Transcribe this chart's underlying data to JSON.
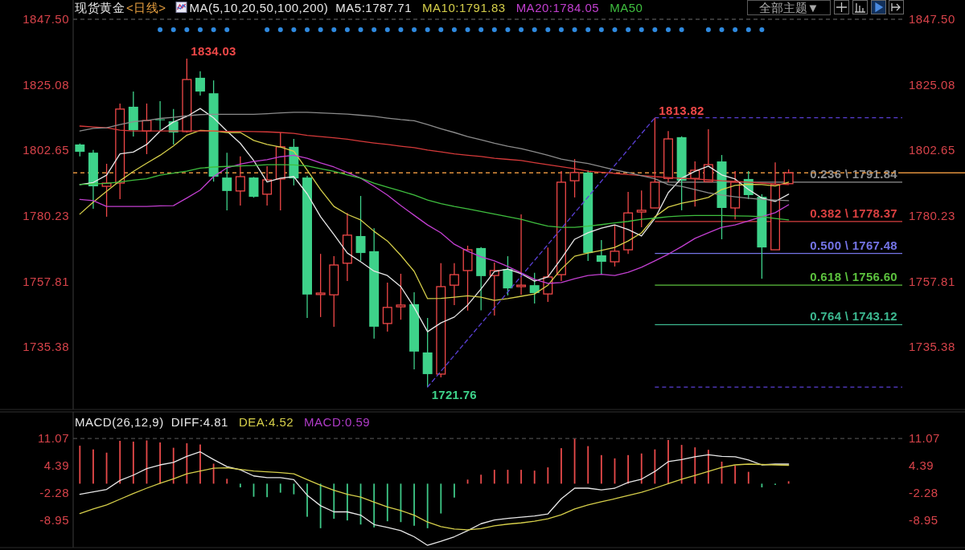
{
  "chart_data": [
    {
      "type": "candlestick",
      "title": "现货黄金",
      "subtitle": "<日线>",
      "legend": "top",
      "legend_title": "MA(5,10,20,50,100,200)",
      "categories": [
        null,
        null,
        null,
        null,
        null,
        null,
        null,
        null,
        null,
        null,
        null,
        null,
        null,
        null,
        null,
        null,
        null,
        null,
        null,
        null,
        null,
        null,
        null,
        null,
        null,
        null,
        null,
        null,
        null,
        null,
        null,
        null,
        null,
        null,
        null,
        null,
        null,
        null,
        null,
        null,
        null,
        null,
        null,
        null,
        null,
        null,
        null,
        null,
        null,
        null,
        null,
        null,
        null,
        null
      ],
      "ohlc": [
        [
          1804.7,
          1805.0,
          1800.6,
          1802.2
        ],
        [
          1801.9,
          1802.8,
          1782.7,
          1790.4
        ],
        [
          1790.4,
          1798.1,
          1780.0,
          1791.5
        ],
        [
          1791.5,
          1818.7,
          1786.0,
          1816.8
        ],
        [
          1817.6,
          1822.8,
          1807.4,
          1809.6
        ],
        [
          1809.3,
          1818.7,
          1801.4,
          1812.9
        ],
        [
          1813.3,
          1819.5,
          1809.3,
          1813.0
        ],
        [
          1812.6,
          1816.8,
          1804.7,
          1808.8
        ],
        [
          1809.1,
          1834.03,
          1808.8,
          1826.9
        ],
        [
          1827.5,
          1829.7,
          1821.4,
          1822.8
        ],
        [
          1822.2,
          1826.6,
          1792.0,
          1793.7
        ],
        [
          1793.4,
          1801.9,
          1782.2,
          1788.8
        ],
        [
          1788.8,
          1800.6,
          1783.8,
          1793.7
        ],
        [
          1793.4,
          1793.6,
          1786.5,
          1786.8
        ],
        [
          1787.7,
          1797.3,
          1783.8,
          1792.6
        ],
        [
          1792.9,
          1808.8,
          1782.2,
          1803.9
        ],
        [
          1803.9,
          1806.6,
          1790.7,
          1793.1
        ],
        [
          1793.4,
          1794.0,
          1745.4,
          1753.4
        ],
        [
          1753.4,
          1767.3,
          1745.7,
          1753.9
        ],
        [
          1753.3,
          1766.5,
          1742.4,
          1763.5
        ],
        [
          1764.1,
          1781.3,
          1758.0,
          1773.7
        ],
        [
          1773.4,
          1787.1,
          1764.9,
          1767.6
        ],
        [
          1768.2,
          1776.1,
          1738.3,
          1742.4
        ],
        [
          1743.5,
          1757.5,
          1740.7,
          1749.0
        ],
        [
          1749.2,
          1760.5,
          1744.8,
          1749.8
        ],
        [
          1750.1,
          1754.2,
          1727.8,
          1733.9
        ],
        [
          1733.6,
          1745.4,
          1721.76,
          1726.2
        ],
        [
          1726.2,
          1764.1,
          1725.1,
          1756.1
        ],
        [
          1756.6,
          1764.1,
          1749.8,
          1760.2
        ],
        [
          1761.6,
          1770.1,
          1747.9,
          1768.7
        ],
        [
          1769.3,
          1769.6,
          1748.0,
          1759.7
        ],
        [
          1759.9,
          1764.3,
          1746.2,
          1761.6
        ],
        [
          1762.1,
          1766.5,
          1753.1,
          1755.5
        ],
        [
          1756.1,
          1780.8,
          1753.3,
          1756.6
        ],
        [
          1756.6,
          1760.8,
          1750.3,
          1753.9
        ],
        [
          1753.6,
          1769.5,
          1750.9,
          1759.4
        ],
        [
          1760.2,
          1795.6,
          1758.0,
          1791.8
        ],
        [
          1792.3,
          1799.7,
          1786.6,
          1795.1
        ],
        [
          1795.1,
          1795.9,
          1764.9,
          1767.6
        ],
        [
          1766.8,
          1772.0,
          1760.2,
          1764.6
        ],
        [
          1764.6,
          1777.0,
          1763.0,
          1768.2
        ],
        [
          1768.7,
          1788.5,
          1767.3,
          1781.3
        ],
        [
          1781.6,
          1789.0,
          1776.4,
          1782.2
        ],
        [
          1783.0,
          1813.82,
          1783.0,
          1791.8
        ],
        [
          1793.1,
          1809.3,
          1791.8,
          1806.6
        ],
        [
          1807.2,
          1807.5,
          1782.2,
          1792.3
        ],
        [
          1793.1,
          1798.9,
          1783.5,
          1795.9
        ],
        [
          1792.0,
          1809.9,
          1791.8,
          1797.8
        ],
        [
          1798.9,
          1801.1,
          1772.3,
          1783.0
        ],
        [
          1783.0,
          1795.6,
          1779.1,
          1791.8
        ],
        [
          1792.9,
          1795.6,
          1786.0,
          1787.4
        ],
        [
          1786.8,
          1787.7,
          1758.8,
          1769.5
        ],
        [
          1768.7,
          1798.6,
          1768.6,
          1791.0
        ],
        [
          1791.3,
          1796.2,
          1791.2,
          1795.0
        ]
      ],
      "value_labels": [
        null,
        null,
        null,
        null,
        null,
        null,
        null,
        null,
        "1834.03",
        null,
        null,
        null,
        null,
        null,
        null,
        null,
        null,
        null,
        null,
        null,
        null,
        null,
        null,
        null,
        null,
        null,
        "1721.76",
        null,
        null,
        null,
        null,
        null,
        null,
        null,
        null,
        null,
        null,
        null,
        null,
        null,
        null,
        null,
        null,
        "1813.82",
        null,
        null,
        null,
        null,
        null,
        null,
        null,
        null,
        null,
        null
      ],
      "colors": [
        "#3ed28a",
        "#3ed28a",
        "#f04848",
        "#f04848",
        "#3ed28a",
        "#f04848",
        "#3ed28a",
        "#3ed28a",
        "#f04848",
        "#3ed28a",
        "#3ed28a",
        "#3ed28a",
        "#f04848",
        "#3ed28a",
        "#f04848",
        "#f04848",
        "#3ed28a",
        "#3ed28a",
        "#f04848",
        "#f04848",
        "#f04848",
        "#3ed28a",
        "#3ed28a",
        "#f04848",
        "#f04848",
        "#3ed28a",
        "#3ed28a",
        "#f04848",
        "#f04848",
        "#f04848",
        "#3ed28a",
        "#f04848",
        "#3ed28a",
        "#f04848",
        "#3ed28a",
        "#f04848",
        "#f04848",
        "#f04848",
        "#3ed28a",
        "#3ed28a",
        "#f04848",
        "#f04848",
        "#f04848",
        "#f04848",
        "#f04848",
        "#3ed28a",
        "#f04848",
        "#f04848",
        "#3ed28a",
        "#f04848",
        "#3ed28a",
        "#3ed28a",
        "#f04848",
        "#f04848"
      ],
      "series": [
        {
          "name": "MA5:1787.71",
          "type": "line",
          "color": "#e8e8e8",
          "values": [
            1791.0,
            1791.7,
            1794.2,
            1801.5,
            1802.1,
            1804.7,
            1809.3,
            1812.4,
            1814.3,
            1817.0,
            1813.8,
            1809.3,
            1805.1,
            1799.2,
            1791.9,
            1793.2,
            1793.7,
            1787.8,
            1780.0,
            1773.9,
            1767.6,
            1764.6,
            1761.4,
            1759.9,
            1756.1,
            1749.0,
            1740.7,
            1743.7,
            1745.7,
            1749.8,
            1755.3,
            1761.3,
            1762.1,
            1760.5,
            1758.0,
            1759.4,
            1765.7,
            1772.3,
            1774.5,
            1776.1,
            1777.2,
            1775.6,
            1773.4,
            1779.4,
            1788.2,
            1793.2,
            1795.5,
            1797.3,
            1794.3,
            1792.9,
            1789.3,
            1786.4,
            1785.2,
            1787.7
          ]
        },
        {
          "name": "MA10:1791.83",
          "type": "line",
          "color": "#d6cf4a",
          "values": [
            1780.9,
            1785.0,
            1788.7,
            1792.3,
            1795.5,
            1798.3,
            1801.0,
            1804.2,
            1807.9,
            1809.5,
            1809.3,
            1808.8,
            1808.8,
            1806.1,
            1804.7,
            1803.8,
            1802.4,
            1795.9,
            1789.3,
            1783.5,
            1780.8,
            1778.9,
            1775.0,
            1771.7,
            1766.8,
            1761.3,
            1752.0,
            1752.1,
            1752.5,
            1753.0,
            1752.5,
            1751.4,
            1752.0,
            1752.8,
            1753.6,
            1756.6,
            1762.1,
            1766.5,
            1767.6,
            1768.5,
            1769.5,
            1771.7,
            1774.5,
            1780.0,
            1783.3,
            1784.6,
            1785.5,
            1786.6,
            1789.3,
            1790.7,
            1791.1,
            1791.0,
            1790.5,
            1791.8
          ]
        },
        {
          "name": "MA20:1784.05",
          "type": "line",
          "color": "#c23fd0",
          "values": [
            1785.9,
            1785.5,
            1783.5,
            1783.5,
            1783.5,
            1783.5,
            1783.7,
            1783.8,
            1786.4,
            1789.1,
            1793.7,
            1796.7,
            1798.0,
            1798.9,
            1799.5,
            1800.5,
            1801.0,
            1800.0,
            1798.4,
            1797.0,
            1795.1,
            1793.2,
            1790.4,
            1787.4,
            1783.8,
            1780.5,
            1777.2,
            1774.5,
            1770.6,
            1768.2,
            1766.3,
            1764.9,
            1763.0,
            1760.8,
            1758.6,
            1757.2,
            1757.5,
            1758.8,
            1759.9,
            1760.3,
            1759.9,
            1761.0,
            1762.7,
            1764.9,
            1767.2,
            1769.8,
            1772.6,
            1774.5,
            1776.4,
            1777.2,
            1778.6,
            1780.0,
            1781.4,
            1784.1
          ]
        },
        {
          "name": "MA50",
          "type": "line",
          "color": "#3fbf3f",
          "values": [
            1791.0,
            1791.2,
            1791.4,
            1791.9,
            1792.5,
            1793.0,
            1794.2,
            1794.9,
            1795.6,
            1796.6,
            1797.0,
            1797.2,
            1797.4,
            1797.5,
            1797.8,
            1797.8,
            1797.7,
            1797.4,
            1796.4,
            1795.5,
            1794.3,
            1793.2,
            1791.5,
            1790.1,
            1788.8,
            1787.4,
            1785.7,
            1784.5,
            1783.5,
            1782.7,
            1781.8,
            1780.9,
            1780.0,
            1779.1,
            1777.9,
            1776.8,
            1776.4,
            1776.4,
            1776.8,
            1777.3,
            1777.9,
            1778.4,
            1779.1,
            1779.5,
            1780.0,
            1780.3,
            1780.4,
            1780.4,
            1780.4,
            1780.3,
            1780.2,
            1780.0,
            1779.4,
            1778.9
          ]
        },
        {
          "type": "line",
          "color": "#d63a3a",
          "values": [
            1811.0,
            1810.7,
            1810.4,
            1809.6,
            1809.3,
            1809.3,
            1809.3,
            1809.3,
            1809.3,
            1809.3,
            1809.3,
            1809.2,
            1809.2,
            1809.1,
            1809.0,
            1808.8,
            1808.5,
            1807.8,
            1807.4,
            1807.0,
            1806.5,
            1805.8,
            1805.2,
            1804.7,
            1804.1,
            1803.6,
            1802.8,
            1802.2,
            1801.5,
            1801.0,
            1800.6,
            1800.0,
            1799.6,
            1799.2,
            1798.5,
            1797.8,
            1797.1,
            1796.4,
            1795.6,
            1795.2,
            1794.8,
            1794.4,
            1794.1,
            1793.7,
            1793.4,
            1793.1,
            1792.9,
            1792.6,
            1792.3,
            1792.1,
            1791.8,
            1791.5,
            1791.2,
            1791.0
          ]
        },
        {
          "type": "line",
          "color": "#8c8c8c",
          "values": [
            1809.3,
            1810.2,
            1810.4,
            1811.5,
            1812.5,
            1812.9,
            1813.6,
            1814.0,
            1814.5,
            1814.9,
            1815.0,
            1815.0,
            1815.0,
            1815.0,
            1815.2,
            1815.5,
            1815.7,
            1815.7,
            1815.5,
            1815.3,
            1815.1,
            1814.7,
            1814.3,
            1813.7,
            1813.2,
            1812.8,
            1811.5,
            1810.1,
            1808.8,
            1807.4,
            1806.3,
            1805.1,
            1804.1,
            1803.3,
            1802.2,
            1801.0,
            1799.7,
            1798.9,
            1798.2,
            1797.1,
            1796.0,
            1795.1,
            1794.0,
            1793.0,
            1791.0,
            1790.4,
            1789.3,
            1788.2,
            1787.4,
            1786.8,
            1786.3,
            1785.9,
            1785.7,
            1785.5
          ]
        },
        {
          "type": "line",
          "color": "#5a3fd6",
          "line_style": "dashed",
          "values": [
            null,
            null,
            null,
            null,
            null,
            null,
            null,
            null,
            null,
            null,
            null,
            null,
            null,
            null,
            null,
            null,
            null,
            null,
            null,
            null,
            null,
            null,
            null,
            null,
            null,
            null,
            1721.76,
            null,
            null,
            null,
            null,
            null,
            null,
            null,
            null,
            null,
            null,
            null,
            null,
            null,
            null,
            null,
            null,
            1813.82,
            null,
            null,
            null,
            null,
            null,
            null,
            null,
            null,
            null,
            null
          ]
        },
        {
          "type": "scatter",
          "color": "#2f8ae0",
          "marker": "circle",
          "values": [
            null,
            null,
            null,
            null,
            null,
            null,
            1843.9,
            1843.9,
            1843.9,
            1843.9,
            1843.9,
            1843.9,
            null,
            null,
            1843.9,
            1843.9,
            1843.9,
            1843.9,
            1843.9,
            1843.9,
            1843.9,
            1843.9,
            1843.9,
            1843.9,
            1843.9,
            1843.9,
            1843.9,
            1843.9,
            1843.9,
            1843.9,
            1843.9,
            1843.9,
            1843.9,
            1843.9,
            1843.9,
            1843.9,
            1843.9,
            1843.9,
            1843.9,
            1843.9,
            1843.9,
            1843.9,
            1843.9,
            1843.9,
            1843.9,
            1843.9,
            null,
            1843.9,
            1843.9,
            1843.9,
            1843.9,
            1843.9,
            null,
            null
          ]
        }
      ],
      "ylim": [
        1714.1,
        1848.6
      ],
      "yticks": [
        {
          "value": 1847.5,
          "label": "1847.50"
        },
        1825.08,
        1802.65,
        1780.23,
        1757.81,
        1735.38
      ],
      "y2lim": [
        1714.1,
        1848.6
      ],
      "y2ticks": [
        {
          "value": 1847.5,
          "label": "1847.50"
        },
        1825.08,
        1802.65,
        1780.23,
        1757.81,
        1735.38
      ],
      "tick_labels": "y",
      "ref_lines": [
        {
          "axis": "y",
          "value": 1847.5,
          "color": "#4a4a4a",
          "line_style": "dashed"
        },
        {
          "axis": "y",
          "value": 1813.82,
          "color": "#5a3fd6",
          "line_style": "dashed"
        },
        {
          "axis": "y",
          "value": 1791.84,
          "label": "0.236 \\ 1791.84",
          "color": "#909090"
        },
        {
          "axis": "y",
          "value": 1778.37,
          "label": "0.382 \\ 1778.37",
          "color": "#d84040"
        },
        {
          "axis": "y",
          "value": 1767.48,
          "label": "0.500 \\ 1767.48",
          "color": "#7474e6"
        },
        {
          "axis": "y",
          "value": 1756.6,
          "label": "0.618 \\ 1756.60",
          "color": "#5cc23e"
        },
        {
          "axis": "y",
          "value": 1743.12,
          "label": "0.764 \\ 1743.12",
          "color": "#3cb890"
        },
        {
          "axis": "y",
          "value": 1721.76,
          "color": "#5a3fd6",
          "line_style": "dashed"
        },
        {
          "axis": "y",
          "value": 1795.0,
          "color": "#e0903c",
          "line_style": "dashed"
        }
      ],
      "annotations": [
        "全部主题▼"
      ]
    },
    {
      "type": "line",
      "legend": "top left",
      "legend_title": "MACD(26,12,9)",
      "categories": [
        null,
        null,
        null,
        null,
        null,
        null,
        null,
        null,
        null,
        null,
        null,
        null,
        null,
        null,
        null,
        null,
        null,
        null,
        null,
        null,
        null,
        null,
        null,
        null,
        null,
        null,
        null,
        null,
        null,
        null,
        null,
        null,
        null,
        null,
        null,
        null,
        null,
        null,
        null,
        null,
        null,
        null,
        null,
        null,
        null,
        null,
        null,
        null,
        null,
        null,
        null,
        null,
        null,
        null
      ],
      "series": [
        {
          "name": "DIFF:4.81",
          "color": "#e8e8e8",
          "values": [
            -2.6,
            -2.0,
            -1.4,
            0.8,
            2.1,
            3.7,
            4.6,
            5.2,
            6.7,
            7.8,
            5.9,
            4.2,
            3.4,
            1.9,
            1.5,
            1.5,
            1.0,
            -2.8,
            -5.4,
            -6.9,
            -6.9,
            -7.7,
            -10.0,
            -10.7,
            -11.5,
            -13.0,
            -15.1,
            -14.1,
            -13.0,
            -11.5,
            -9.8,
            -8.9,
            -8.5,
            -8.2,
            -7.9,
            -7.4,
            -3.7,
            -1.1,
            -1.1,
            -1.5,
            -1.1,
            0.3,
            1.1,
            3.0,
            5.4,
            5.9,
            6.6,
            7.1,
            6.7,
            6.6,
            5.8,
            4.6,
            4.8,
            4.8
          ]
        },
        {
          "name": "DEA:4.52",
          "color": "#d6cf4a",
          "values": [
            -7.3,
            -6.2,
            -5.2,
            -3.8,
            -2.4,
            -1.1,
            0.1,
            1.2,
            2.4,
            3.1,
            3.8,
            3.9,
            3.5,
            3.1,
            2.9,
            2.7,
            2.4,
            1.0,
            -0.4,
            -1.6,
            -2.6,
            -3.3,
            -4.5,
            -5.7,
            -6.6,
            -7.7,
            -9.4,
            -10.5,
            -11.1,
            -11.3,
            -11.0,
            -10.3,
            -9.9,
            -9.6,
            -9.2,
            -8.6,
            -7.6,
            -6.2,
            -5.2,
            -4.4,
            -3.7,
            -2.9,
            -2.1,
            -1.1,
            0.0,
            1.1,
            2.0,
            3.0,
            4.0,
            4.6,
            4.8,
            4.7,
            4.6,
            4.5
          ]
        },
        {
          "type": "bar",
          "values": [
            9.3,
            8.4,
            7.6,
            10.5,
            10.3,
            10.6,
            10.1,
            8.8,
            9.9,
            9.6,
            4.9,
            1.2,
            -0.9,
            -3.2,
            -3.3,
            -2.2,
            -2.6,
            -8.1,
            -10.9,
            -8.6,
            -9.0,
            -10.0,
            -10.7,
            -9.2,
            -9.4,
            -10.3,
            -10.9,
            -7.3,
            -3.4,
            1.0,
            2.2,
            3.4,
            3.4,
            3.4,
            3.2,
            4.0,
            8.7,
            11.0,
            9.2,
            7.0,
            6.2,
            7.0,
            7.4,
            8.4,
            10.7,
            9.5,
            8.9,
            8.3,
            5.4,
            4.4,
            2.9,
            -0.9,
            -0.3,
            0.6
          ],
          "colors": [
            "#e84a4a",
            "#e84a4a",
            "#e84a4a",
            "#e84a4a",
            "#e84a4a",
            "#e84a4a",
            "#e84a4a",
            "#e84a4a",
            "#e84a4a",
            "#e84a4a",
            "#e84a4a",
            "#e84a4a",
            "#3ec887",
            "#3ec887",
            "#3ec887",
            "#3ec887",
            "#3ec887",
            "#3ec887",
            "#3ec887",
            "#3ec887",
            "#3ec887",
            "#3ec887",
            "#3ec887",
            "#3ec887",
            "#3ec887",
            "#3ec887",
            "#3ec887",
            "#3ec887",
            "#3ec887",
            "#e84a4a",
            "#e84a4a",
            "#e84a4a",
            "#e84a4a",
            "#e84a4a",
            "#e84a4a",
            "#e84a4a",
            "#e84a4a",
            "#e84a4a",
            "#e84a4a",
            "#e84a4a",
            "#e84a4a",
            "#e84a4a",
            "#e84a4a",
            "#e84a4a",
            "#e84a4a",
            "#e84a4a",
            "#e84a4a",
            "#e84a4a",
            "#e84a4a",
            "#e84a4a",
            "#e84a4a",
            "#3ec887",
            "#3ec887",
            "#e84a4a"
          ]
        }
      ],
      "ylim": [
        -15.65,
        17.58
      ],
      "yticks": [
        11.07,
        4.39,
        -2.28,
        -8.95
      ],
      "y2lim": [
        -15.65,
        17.58
      ],
      "y2ticks": [
        11.07,
        4.39,
        -2.28,
        -8.95
      ],
      "tick_labels": "y",
      "ref_lines": [
        {
          "axis": "y",
          "value": 11.07,
          "color": "#4a4a4a",
          "line_style": "dashed"
        }
      ],
      "annotations": [
        "MACD:0.59"
      ]
    }
  ]
}
